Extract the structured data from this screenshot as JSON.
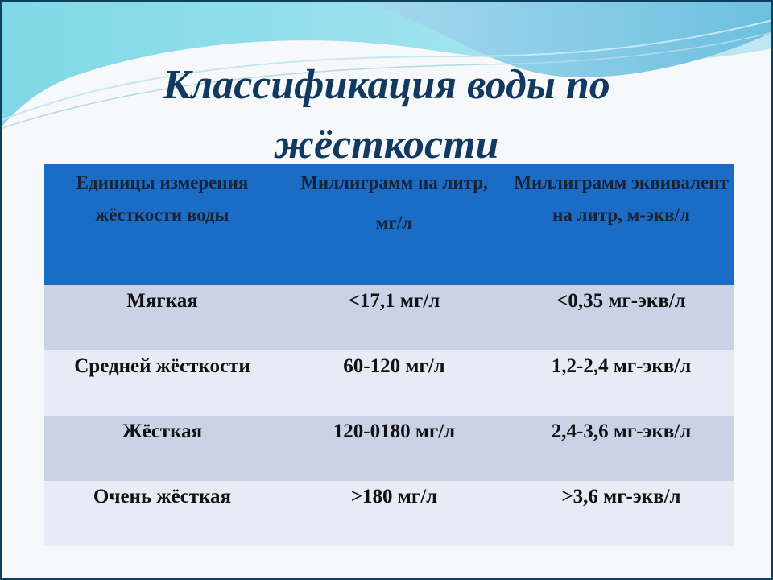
{
  "slide": {
    "title_line1": "Классификация воды по",
    "title_line2": "жёсткости",
    "colors": {
      "title": "#12395f",
      "header_bg": "#1b6cc4",
      "row_odd": "#ccd2e6",
      "row_even": "#e8ebf5"
    }
  },
  "table": {
    "headers": [
      {
        "line1": "Единицы измерения жёсткости воды"
      },
      {
        "line1": "Миллиграмм на литр,",
        "line2": "мг/л"
      },
      {
        "line1": "Миллиграмм эквивалент на литр, м-экв/л"
      }
    ],
    "rows": [
      [
        "Мягкая",
        "<17,1 мг/л",
        "<0,35 мг-экв/л"
      ],
      [
        "Средней жёсткости",
        "60-120 мг/л",
        "1,2-2,4 мг-экв/л"
      ],
      [
        "Жёсткая",
        "120-0180 мг/л",
        "2,4-3,6 мг-экв/л"
      ],
      [
        "Очень жёсткая",
        ">180 мг/л",
        ">3,6 мг-экв/л"
      ]
    ]
  }
}
